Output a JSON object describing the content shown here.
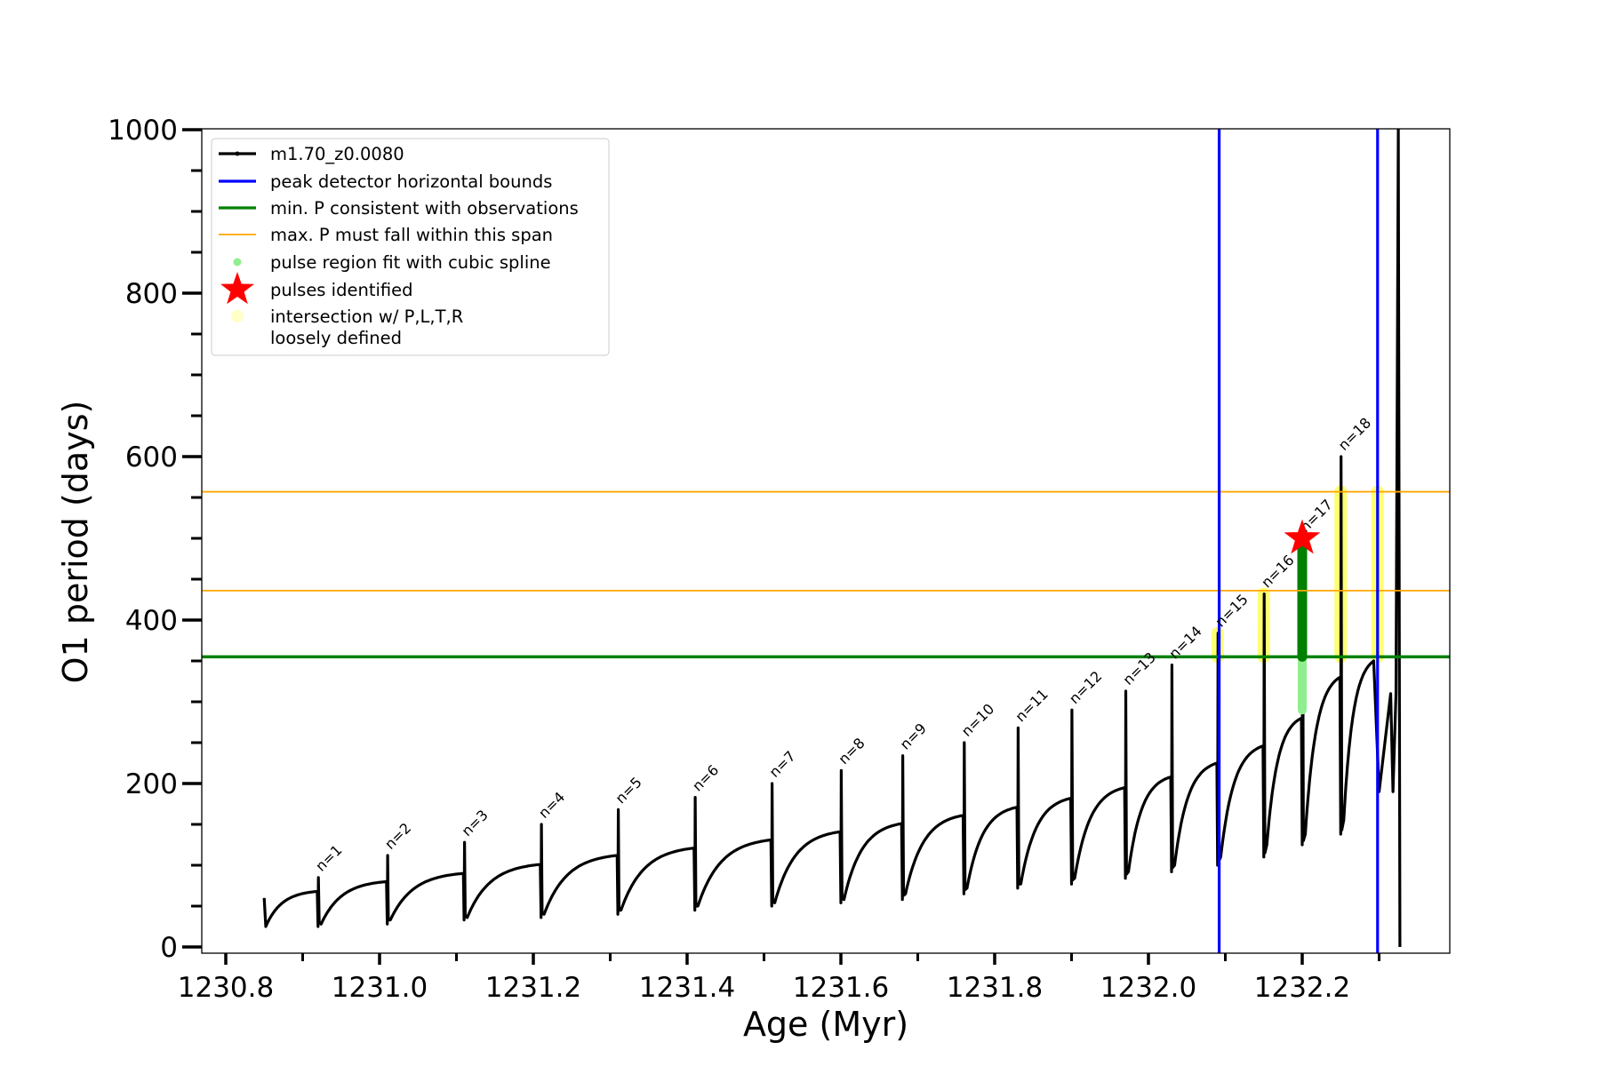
{
  "chart_data": {
    "type": "line",
    "xlabel": "Age (Myr)",
    "ylabel": "O1 period (days)",
    "xlim": [
      1230.8,
      1232.4
    ],
    "ylim": [
      0,
      1000
    ],
    "x_ticks": [
      "1230.8",
      "1231.0",
      "1231.2",
      "1231.4",
      "1231.6",
      "1231.8",
      "1232.0",
      "1232.2"
    ],
    "y_ticks": [
      "0",
      "200",
      "400",
      "600",
      "800",
      "1000"
    ],
    "grid": false,
    "legend_position": "top-left",
    "legend": [
      {
        "label": "m1.70_z0.0080",
        "marker": "line-dot",
        "color": "#000000"
      },
      {
        "label": "peak detector horizontal bounds",
        "marker": "line",
        "color": "#0000ff"
      },
      {
        "label": "min. P consistent with observations",
        "marker": "line",
        "color": "#008000"
      },
      {
        "label": "max. P must fall within this span",
        "marker": "line",
        "color": "#ffa500"
      },
      {
        "label": "pulse region fit with cubic spline",
        "marker": "dot",
        "color": "#90ee90"
      },
      {
        "label": "pulses identified",
        "marker": "star",
        "color": "#ff0000"
      },
      {
        "label": "intersection w/ P,L,T,R",
        "label2": "loosely defined",
        "marker": "dot",
        "color": "#ffff99"
      }
    ],
    "series_name": "m1.70_z0.0080",
    "pulses": [
      {
        "n": 1,
        "age": 1230.92,
        "start": 25,
        "peak": 85,
        "post_min": 28,
        "pre_peak": 68
      },
      {
        "n": 2,
        "age": 1231.01,
        "start": 28,
        "peak": 112,
        "post_min": 33,
        "pre_peak": 80
      },
      {
        "n": 3,
        "age": 1231.11,
        "start": 33,
        "peak": 128,
        "post_min": 36,
        "pre_peak": 90
      },
      {
        "n": 4,
        "age": 1231.21,
        "start": 36,
        "peak": 150,
        "post_min": 40,
        "pre_peak": 101
      },
      {
        "n": 5,
        "age": 1231.31,
        "start": 40,
        "peak": 168,
        "post_min": 45,
        "pre_peak": 112
      },
      {
        "n": 6,
        "age": 1231.41,
        "start": 45,
        "peak": 183,
        "post_min": 50,
        "pre_peak": 121
      },
      {
        "n": 7,
        "age": 1231.51,
        "start": 50,
        "peak": 200,
        "post_min": 54,
        "pre_peak": 131
      },
      {
        "n": 8,
        "age": 1231.6,
        "start": 54,
        "peak": 216,
        "post_min": 58,
        "pre_peak": 141
      },
      {
        "n": 9,
        "age": 1231.68,
        "start": 58,
        "peak": 234,
        "post_min": 65,
        "pre_peak": 151
      },
      {
        "n": 10,
        "age": 1231.76,
        "start": 65,
        "peak": 250,
        "post_min": 72,
        "pre_peak": 161
      },
      {
        "n": 11,
        "age": 1231.83,
        "start": 72,
        "peak": 268,
        "post_min": 77,
        "pre_peak": 171
      },
      {
        "n": 12,
        "age": 1231.9,
        "start": 77,
        "peak": 290,
        "post_min": 84,
        "pre_peak": 182
      },
      {
        "n": 13,
        "age": 1231.97,
        "start": 84,
        "peak": 313,
        "post_min": 92,
        "pre_peak": 195
      },
      {
        "n": 14,
        "age": 1232.03,
        "start": 92,
        "peak": 345,
        "post_min": 100,
        "pre_peak": 208
      },
      {
        "n": 15,
        "age": 1232.09,
        "start": 100,
        "peak": 384,
        "post_min": 110,
        "pre_peak": 225
      },
      {
        "n": 16,
        "age": 1232.15,
        "start": 110,
        "peak": 432,
        "post_min": 125,
        "pre_peak": 246
      },
      {
        "n": 17,
        "age": 1232.2,
        "start": 125,
        "peak": 500,
        "post_min": 138,
        "pre_peak": 280
      },
      {
        "n": 18,
        "age": 1232.25,
        "start": 138,
        "peak": 600,
        "post_min": 155,
        "pre_peak": 330
      }
    ],
    "initial_point": {
      "age": 1230.85,
      "value": 25
    },
    "post_pulse_18": {
      "age_end": 1232.293,
      "value_end": 350
    },
    "final_segment": [
      {
        "age": 1232.3,
        "value": 190
      },
      {
        "age": 1232.315,
        "value": 310
      },
      {
        "age": 1232.318,
        "value": 190
      },
      {
        "age": 1232.322,
        "value": 310
      },
      {
        "age": 1232.325,
        "value": 1000
      },
      {
        "age": 1232.327,
        "value": 0
      }
    ],
    "vertical_bounds": [
      1232.092,
      1232.298
    ],
    "min_P": 355,
    "max_P_span": [
      436,
      557
    ],
    "pulse_identified": {
      "age": 1232.2,
      "value": 500
    },
    "cubic_spline_region": {
      "age": 1232.2,
      "range": [
        290,
        500
      ]
    },
    "green_region": {
      "age": 1232.2,
      "range": [
        355,
        500
      ]
    },
    "yellow_regions": [
      {
        "age": 1232.09,
        "range": [
          355,
          384
        ]
      },
      {
        "age": 1232.15,
        "range": [
          355,
          432
        ]
      },
      {
        "age": 1232.25,
        "range": [
          355,
          557
        ]
      },
      {
        "age": 1232.298,
        "range": [
          355,
          557
        ]
      }
    ],
    "colors": {
      "series": "#000000",
      "bounds": "#0000ff",
      "minP": "#008000",
      "maxP": "#ffa500",
      "spline": "#90ee90",
      "star": "#ff0000",
      "yellow": "#ffff00"
    }
  }
}
